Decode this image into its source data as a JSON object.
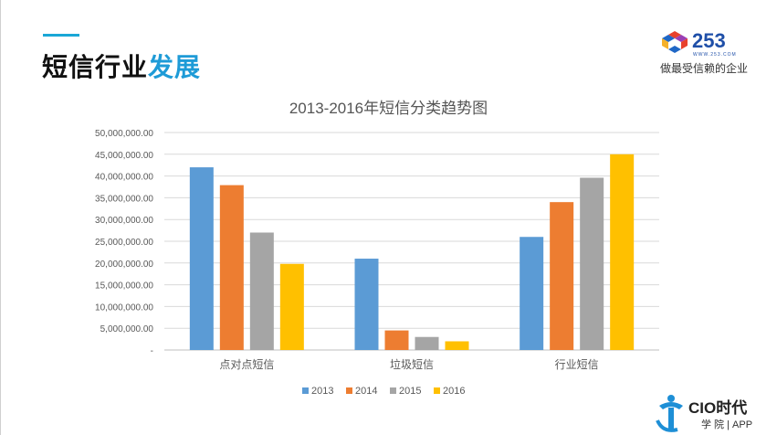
{
  "header": {
    "title_black": "短信行业",
    "title_blue": "发展",
    "accent_color": "#1aa7d6"
  },
  "brand": {
    "logo_text": "253",
    "logo_url_text": "WWW.253.COM",
    "tagline": "做最受信赖的企业",
    "footer_logo_text": "CIO时代",
    "footer_sub_text": "学 院 | APP"
  },
  "chart_data": {
    "type": "bar",
    "title": "2013-2016年短信分类趋势图",
    "categories": [
      "点对点短信",
      "垃圾短信",
      "行业短信"
    ],
    "series": [
      {
        "name": "2013",
        "color": "#5b9bd5",
        "values": [
          42000000,
          21000000,
          26000000
        ]
      },
      {
        "name": "2014",
        "color": "#ed7d31",
        "values": [
          37900000,
          4500000,
          34000000
        ]
      },
      {
        "name": "2015",
        "color": "#a5a5a5",
        "values": [
          27000000,
          3000000,
          39600000
        ]
      },
      {
        "name": "2016",
        "color": "#ffc000",
        "values": [
          19800000,
          2000000,
          45000000
        ]
      }
    ],
    "ylim": [
      0,
      50000000
    ],
    "yticks": [
      "50,000,000.00",
      "45,000,000.00",
      "40,000,000.00",
      "35,000,000.00",
      "30,000,000.00",
      "25,000,000.00",
      "20,000,000.00",
      "15,000,000.00",
      "10,000,000.00",
      "5,000,000.00",
      "-"
    ],
    "xlabel": "",
    "ylabel": "",
    "grid": true,
    "legend": "bottom"
  }
}
